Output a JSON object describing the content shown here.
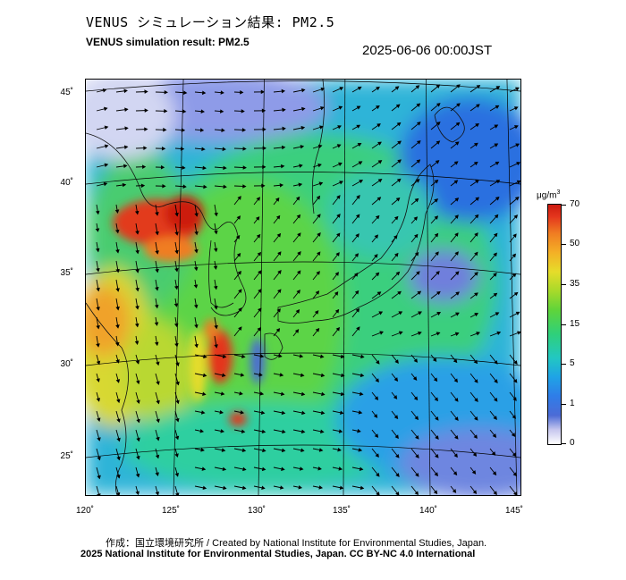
{
  "title_jp": "VENUS シミュレーション結果: PM2.5",
  "title_en": "VENUS simulation result: PM2.5",
  "timestamp": "2025-06-06 00:00JST",
  "lat_labels": [
    "45˚",
    "40˚",
    "35˚",
    "30˚",
    "25˚"
  ],
  "lon_labels": [
    "120˚",
    "125˚",
    "130˚",
    "135˚",
    "140˚",
    "145˚"
  ],
  "colorbar": {
    "unit": "μg/m",
    "unit_sup": "3",
    "labels": [
      "70",
      "50",
      "35",
      "15",
      "5",
      "1",
      "0"
    ],
    "colors": [
      "#cc1a10",
      "#f07d22",
      "#e6dc2a",
      "#5fd43a",
      "#22c7c2",
      "#2f7de8",
      "#ffffff"
    ]
  },
  "credit_line1": "作成：国立環境研究所 / Created by National Institute for Environmental Studies, Japan.",
  "credit_line2": "2025 National Institute for Environmental Studies, Japan. CC BY-NC 4.0 International"
}
